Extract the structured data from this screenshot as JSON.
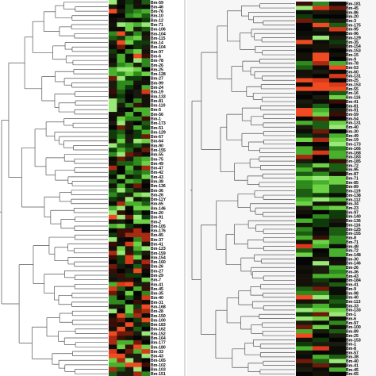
{
  "left_panel": {
    "labels": [
      "Bm-59",
      "Bm-46",
      "Bm-76",
      "Bm-10",
      "Bm-12",
      "Bm-71",
      "Bm-106",
      "Bm-104",
      "Bm-115",
      "Bm-14",
      "Bm-104",
      "Bm-97",
      "Bm-6",
      "Bm-78",
      "Bm-26",
      "Bm-25",
      "Bm-128",
      "Bm-27",
      "Bm-99",
      "Bm-24",
      "Bm-19",
      "Bm-133",
      "Bm-81",
      "Bm-110",
      "Bm-5",
      "Bm-56",
      "Bm-1",
      "Bm-173",
      "Bm-51",
      "Bm-129",
      "Bm-67",
      "Bm-64",
      "Bm-90",
      "Bm-155",
      "Bm-55",
      "Bm-75",
      "Bm-49",
      "Bm-47",
      "Bm-42",
      "Bm-43",
      "Bm-38",
      "Bm-136",
      "Bm-36",
      "Bm-26",
      "Bm-11Y",
      "Bm-65",
      "Bm-146",
      "Bm-20",
      "Bm-91",
      "Bm-2",
      "Bm-105",
      "Bm-176",
      "Bm-85",
      "Bm-37",
      "Bm-41",
      "Bm-123",
      "Bm-159",
      "Bm-154",
      "Bm-160",
      "Bm-26",
      "Bm-27",
      "Bm-29",
      "Bm-7",
      "Bm-41",
      "Bm-45",
      "Bm-35",
      "Bm-40",
      "Bm-31",
      "Bm-168",
      "Bm-28",
      "Bm-150",
      "Bm-100",
      "Bm-183",
      "Bm-162",
      "Bm-152",
      "Bm-164",
      "Bm-177",
      "Bm-180",
      "Bm-33",
      "Bm-43",
      "Bm-165",
      "Bm-102",
      "Bm-103",
      "Bm-151"
    ],
    "heatmap_colors": [
      [
        "#0a0a02",
        "#1a4a10",
        "#101006",
        "#3a9a20",
        "#0a0a04"
      ],
      [
        "#082006",
        "#0a0a02",
        "#2a7a18",
        "#0e0e04",
        "#2a7018"
      ],
      [
        "#123a0c",
        "#3a0a06",
        "#0c0c04",
        "#236615",
        "#0a0a03"
      ],
      [
        "#081806",
        "#0c2e08",
        "#1f5a12",
        "#0c0c03",
        "#33881d"
      ]
    ]
  },
  "right_panel": {
    "labels": [
      "Bm-181",
      "Bm-45",
      "Bm-86",
      "Bm-20",
      "Bm-3",
      "Bm-175",
      "Bm-95",
      "Bm-96",
      "Bm-129",
      "Bm-35",
      "Bm-154",
      "Bm-153",
      "Bm-15",
      "Bm-9",
      "Bm-78",
      "Bm-53",
      "Bm-60",
      "Bm-131",
      "Bm-25",
      "Bm-153",
      "Bm-55",
      "Bm-16",
      "Bm-116",
      "Bm-41",
      "Bm-81",
      "Bm-91",
      "Bm-59",
      "Bm-54",
      "Bm-131",
      "Bm-40",
      "Bm-30",
      "Bm-49",
      "Bm-19",
      "Bm-173",
      "Bm-166",
      "Bm-168",
      "Bm-183",
      "Bm-185",
      "Bm-72",
      "Bm-95",
      "Bm-87",
      "Bm-71",
      "Bm-85",
      "Bm-89",
      "Bm-119",
      "Bm-138",
      "Bm-112",
      "Bm-34",
      "Bm-23",
      "Bm-97",
      "Bm-140",
      "Bm-136",
      "Bm-116",
      "Bm-125",
      "Bm-155",
      "Bm-8",
      "Bm-71",
      "Bm-48",
      "Bm-72",
      "Bm-148",
      "Bm-30",
      "Bm-146",
      "Bm-26",
      "Bm-36",
      "Bm-43",
      "Bm-184",
      "Bm-41",
      "Bm-9",
      "Bm-98",
      "Bm-40",
      "Bm-113",
      "Bm-33",
      "Bm-133",
      "Bm-1",
      "Bm-6",
      "Bm-97",
      "Bm-100",
      "Bm-89",
      "Bm-25",
      "Bm-153",
      "Bm-1",
      "Bm-8",
      "Bm-57",
      "Bm-38",
      "Bm-40",
      "Bm-41",
      "Bm-45",
      "Bm-65"
    ]
  }
}
